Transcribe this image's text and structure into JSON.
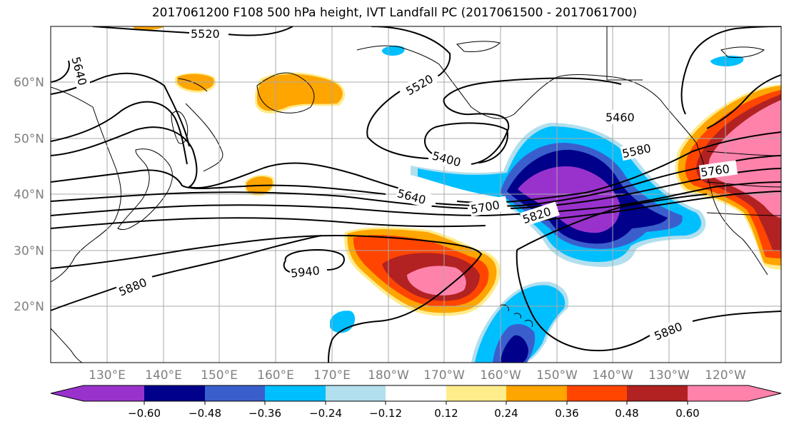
{
  "title": "2017061200 F108 500 hPa height, IVT Landfall PC (2017061500 - 2017061700)",
  "map": {
    "projection": "PlateCarree",
    "lon_range": [
      120,
      250
    ],
    "lat_range": [
      10,
      70
    ],
    "lon_tick_labels": [
      "130°E",
      "140°E",
      "150°E",
      "160°E",
      "170°E",
      "180°W",
      "170°W",
      "160°W",
      "150°W",
      "140°W",
      "130°W",
      "120°W"
    ],
    "lat_tick_labels": [
      "20°N",
      "30°N",
      "40°N",
      "50°N",
      "60°N"
    ]
  },
  "height_contours": {
    "variable": "500 hPa height",
    "labels": [
      "5520",
      "5520",
      "5640",
      "5400",
      "5460",
      "5580",
      "5640",
      "5700",
      "5760",
      "5820",
      "5880",
      "5940",
      "5880"
    ]
  },
  "colorbar": {
    "tick_labels": [
      "−0.60",
      "−0.48",
      "−0.36",
      "−0.24",
      "−0.12",
      "0.12",
      "0.24",
      "0.36",
      "0.48",
      "0.60"
    ],
    "colors": [
      "#9932cc",
      "#00008b",
      "#3a5fcd",
      "#00bfff",
      "#b2dfee",
      "#ffffff",
      "#ffec8b",
      "#ffa500",
      "#ff4500",
      "#b22222",
      "#ff82ab"
    ]
  }
}
